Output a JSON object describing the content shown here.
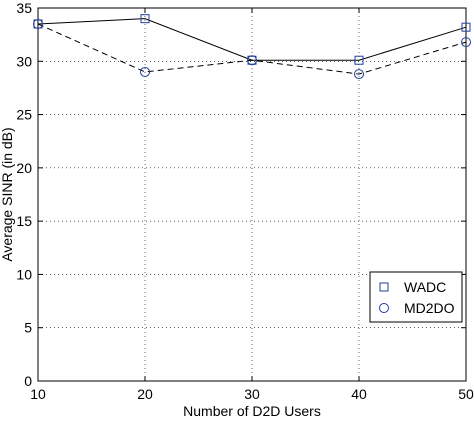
{
  "chart_data": {
    "type": "line",
    "title": "",
    "xlabel": "Number of D2D Users",
    "ylabel": "Average SINR (in dB)",
    "xlim": [
      10,
      50
    ],
    "ylim": [
      0,
      35
    ],
    "x": [
      10,
      20,
      30,
      40,
      50
    ],
    "xticks": [
      "10",
      "20",
      "30",
      "40",
      "50"
    ],
    "yticks": [
      "0",
      "5",
      "10",
      "15",
      "20",
      "25",
      "30",
      "35"
    ],
    "grid": true,
    "legend_position": "bottom-right",
    "series": [
      {
        "name": "WADC",
        "values": [
          33.5,
          34.0,
          30.1,
          30.1,
          33.2
        ],
        "line_style": "solid",
        "marker": "square",
        "line_color": "#000000",
        "marker_color": "#1f3f9f"
      },
      {
        "name": "MD2DO",
        "values": [
          33.5,
          29.0,
          30.1,
          28.8,
          31.8
        ],
        "line_style": "dashed",
        "marker": "circle",
        "line_color": "#000000",
        "marker_color": "#1f3f9f"
      }
    ]
  }
}
